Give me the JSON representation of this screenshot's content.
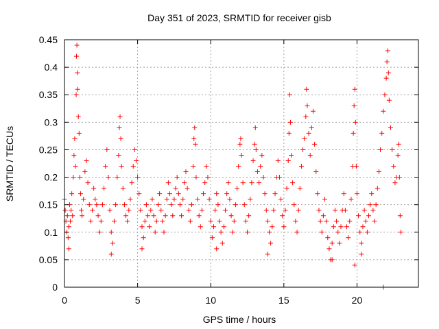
{
  "chart_data": {
    "type": "scatter",
    "title": "Day 351 of 2023, SRMTID for receiver gisb",
    "xlabel": "GPS time / hours",
    "ylabel": "SRMTID / TECUs",
    "xlim": [
      0,
      24.2
    ],
    "ylim": [
      0,
      0.45
    ],
    "xticks": [
      0,
      5,
      10,
      15,
      20
    ],
    "yticks": [
      0,
      0.05,
      0.1,
      0.15,
      0.2,
      0.25,
      0.3,
      0.35,
      0.4,
      0.45
    ],
    "xtick_labels": [
      "0",
      "5",
      "10",
      "15",
      "20"
    ],
    "ytick_labels": [
      "0",
      "0.05",
      "0.1",
      "0.15",
      "0.2",
      "0.25",
      "0.3",
      "0.35",
      "0.4",
      "0.45"
    ],
    "grid": true,
    "marker": "+",
    "series": [
      {
        "name": "SRMTID",
        "color": "#ff0000",
        "points": [
          [
            0.0,
            0.16
          ],
          [
            0.05,
            0.14
          ],
          [
            0.1,
            0.12
          ],
          [
            0.15,
            0.1
          ],
          [
            0.2,
            0.13
          ],
          [
            0.25,
            0.09
          ],
          [
            0.3,
            0.11
          ],
          [
            0.35,
            0.15
          ],
          [
            0.4,
            0.12
          ],
          [
            0.45,
            0.14
          ],
          [
            0.5,
            0.17
          ],
          [
            0.55,
            0.13
          ],
          [
            0.6,
            0.2
          ],
          [
            0.65,
            0.24
          ],
          [
            0.7,
            0.27
          ],
          [
            0.75,
            0.22
          ],
          [
            0.8,
            0.35
          ],
          [
            0.82,
            0.42
          ],
          [
            0.85,
            0.44
          ],
          [
            0.88,
            0.39
          ],
          [
            0.9,
            0.36
          ],
          [
            0.95,
            0.31
          ],
          [
            1.0,
            0.28
          ],
          [
            1.05,
            0.2
          ],
          [
            1.1,
            0.17
          ],
          [
            1.15,
            0.14
          ],
          [
            1.2,
            0.13
          ],
          [
            1.3,
            0.16
          ],
          [
            1.4,
            0.21
          ],
          [
            1.5,
            0.23
          ],
          [
            1.6,
            0.19
          ],
          [
            1.7,
            0.15
          ],
          [
            1.8,
            0.12
          ],
          [
            1.9,
            0.14
          ],
          [
            2.0,
            0.18
          ],
          [
            2.1,
            0.16
          ],
          [
            2.2,
            0.15
          ],
          [
            2.3,
            0.13
          ],
          [
            2.4,
            0.1
          ],
          [
            2.5,
            0.12
          ],
          [
            2.6,
            0.15
          ],
          [
            2.7,
            0.18
          ],
          [
            2.8,
            0.22
          ],
          [
            2.9,
            0.25
          ],
          [
            3.0,
            0.2
          ],
          [
            3.1,
            0.14
          ],
          [
            3.2,
            0.1
          ],
          [
            3.3,
            0.08
          ],
          [
            3.4,
            0.12
          ],
          [
            3.5,
            0.15
          ],
          [
            3.6,
            0.2
          ],
          [
            3.7,
            0.24
          ],
          [
            3.75,
            0.29
          ],
          [
            3.8,
            0.31
          ],
          [
            3.85,
            0.27
          ],
          [
            3.9,
            0.22
          ],
          [
            4.0,
            0.18
          ],
          [
            4.1,
            0.15
          ],
          [
            4.2,
            0.13
          ],
          [
            4.3,
            0.12
          ],
          [
            4.4,
            0.14
          ],
          [
            4.5,
            0.16
          ],
          [
            4.6,
            0.19
          ],
          [
            4.7,
            0.22
          ],
          [
            4.8,
            0.25
          ],
          [
            4.9,
            0.23
          ],
          [
            5.0,
            0.2
          ],
          [
            5.1,
            0.17
          ],
          [
            5.2,
            0.14
          ],
          [
            5.3,
            0.11
          ],
          [
            5.4,
            0.09
          ],
          [
            5.5,
            0.12
          ],
          [
            5.6,
            0.15
          ],
          [
            5.7,
            0.13
          ],
          [
            5.8,
            0.11
          ],
          [
            5.9,
            0.14
          ],
          [
            6.0,
            0.16
          ],
          [
            6.1,
            0.13
          ],
          [
            6.2,
            0.1
          ],
          [
            6.3,
            0.12
          ],
          [
            6.4,
            0.15
          ],
          [
            6.5,
            0.17
          ],
          [
            6.6,
            0.14
          ],
          [
            6.7,
            0.12
          ],
          [
            6.8,
            0.1
          ],
          [
            6.9,
            0.13
          ],
          [
            7.0,
            0.16
          ],
          [
            7.1,
            0.19
          ],
          [
            7.2,
            0.17
          ],
          [
            7.3,
            0.15
          ],
          [
            7.4,
            0.13
          ],
          [
            7.5,
            0.16
          ],
          [
            7.6,
            0.18
          ],
          [
            7.7,
            0.2
          ],
          [
            7.8,
            0.17
          ],
          [
            7.9,
            0.15
          ],
          [
            8.0,
            0.13
          ],
          [
            8.1,
            0.16
          ],
          [
            8.2,
            0.19
          ],
          [
            8.3,
            0.21
          ],
          [
            8.4,
            0.18
          ],
          [
            8.5,
            0.14
          ],
          [
            8.6,
            0.12
          ],
          [
            8.7,
            0.15
          ],
          [
            8.8,
            0.22
          ],
          [
            8.85,
            0.27
          ],
          [
            8.9,
            0.29
          ],
          [
            8.95,
            0.26
          ],
          [
            9.0,
            0.2
          ],
          [
            9.1,
            0.16
          ],
          [
            9.2,
            0.13
          ],
          [
            9.3,
            0.11
          ],
          [
            9.4,
            0.14
          ],
          [
            9.5,
            0.17
          ],
          [
            9.6,
            0.19
          ],
          [
            9.7,
            0.22
          ],
          [
            9.8,
            0.2
          ],
          [
            9.9,
            0.16
          ],
          [
            10.0,
            0.12
          ],
          [
            10.1,
            0.09
          ],
          [
            10.2,
            0.11
          ],
          [
            10.3,
            0.14
          ],
          [
            10.4,
            0.17
          ],
          [
            10.5,
            0.15
          ],
          [
            10.6,
            0.12
          ],
          [
            10.7,
            0.1
          ],
          [
            10.8,
            0.08
          ],
          [
            10.9,
            0.11
          ],
          [
            11.0,
            0.14
          ],
          [
            11.1,
            0.17
          ],
          [
            11.2,
            0.19
          ],
          [
            11.3,
            0.16
          ],
          [
            11.4,
            0.13
          ],
          [
            11.5,
            0.1
          ],
          [
            11.6,
            0.12
          ],
          [
            11.7,
            0.15
          ],
          [
            11.8,
            0.18
          ],
          [
            11.9,
            0.22
          ],
          [
            12.0,
            0.26
          ],
          [
            12.05,
            0.27
          ],
          [
            12.1,
            0.24
          ],
          [
            12.2,
            0.19
          ],
          [
            12.3,
            0.15
          ],
          [
            12.4,
            0.12
          ],
          [
            12.5,
            0.1
          ],
          [
            12.6,
            0.13
          ],
          [
            12.7,
            0.16
          ],
          [
            12.8,
            0.19
          ],
          [
            12.9,
            0.23
          ],
          [
            13.0,
            0.26
          ],
          [
            13.05,
            0.29
          ],
          [
            13.1,
            0.25
          ],
          [
            13.2,
            0.21
          ],
          [
            13.3,
            0.19
          ],
          [
            13.4,
            0.22
          ],
          [
            13.5,
            0.24
          ],
          [
            13.6,
            0.2
          ],
          [
            13.7,
            0.17
          ],
          [
            13.8,
            0.14
          ],
          [
            13.9,
            0.12
          ],
          [
            14.0,
            0.1
          ],
          [
            14.1,
            0.08
          ],
          [
            14.2,
            0.11
          ],
          [
            14.3,
            0.14
          ],
          [
            14.4,
            0.17
          ],
          [
            14.5,
            0.2
          ],
          [
            14.6,
            0.23
          ],
          [
            14.7,
            0.2
          ],
          [
            14.8,
            0.16
          ],
          [
            14.9,
            0.13
          ],
          [
            15.0,
            0.11
          ],
          [
            15.1,
            0.14
          ],
          [
            15.2,
            0.18
          ],
          [
            15.3,
            0.23
          ],
          [
            15.35,
            0.28
          ],
          [
            15.4,
            0.35
          ],
          [
            15.45,
            0.3
          ],
          [
            15.5,
            0.24
          ],
          [
            15.6,
            0.19
          ],
          [
            15.7,
            0.15
          ],
          [
            15.8,
            0.12
          ],
          [
            15.9,
            0.1
          ],
          [
            16.0,
            0.14
          ],
          [
            16.1,
            0.18
          ],
          [
            16.2,
            0.22
          ],
          [
            16.3,
            0.25
          ],
          [
            16.4,
            0.27
          ],
          [
            16.5,
            0.31
          ],
          [
            16.55,
            0.36
          ],
          [
            16.6,
            0.33
          ],
          [
            16.7,
            0.28
          ],
          [
            16.8,
            0.24
          ],
          [
            16.9,
            0.29
          ],
          [
            17.0,
            0.32
          ],
          [
            17.1,
            0.26
          ],
          [
            17.2,
            0.21
          ],
          [
            17.3,
            0.17
          ],
          [
            17.4,
            0.14
          ],
          [
            17.5,
            0.12
          ],
          [
            17.6,
            0.1
          ],
          [
            17.7,
            0.13
          ],
          [
            17.8,
            0.16
          ],
          [
            17.9,
            0.12
          ],
          [
            18.0,
            0.09
          ],
          [
            18.1,
            0.07
          ],
          [
            18.2,
            0.05
          ],
          [
            18.3,
            0.08
          ],
          [
            18.4,
            0.11
          ],
          [
            18.5,
            0.14
          ],
          [
            18.6,
            0.12
          ],
          [
            18.7,
            0.1
          ],
          [
            18.8,
            0.08
          ],
          [
            18.9,
            0.11
          ],
          [
            19.0,
            0.14
          ],
          [
            19.1,
            0.17
          ],
          [
            19.2,
            0.14
          ],
          [
            19.3,
            0.11
          ],
          [
            19.4,
            0.09
          ],
          [
            19.5,
            0.12
          ],
          [
            19.6,
            0.16
          ],
          [
            19.7,
            0.22
          ],
          [
            19.75,
            0.28
          ],
          [
            19.8,
            0.33
          ],
          [
            19.85,
            0.36
          ],
          [
            19.9,
            0.3
          ],
          [
            19.95,
            0.22
          ],
          [
            20.0,
            0.17
          ],
          [
            20.1,
            0.13
          ],
          [
            20.2,
            0.1
          ],
          [
            20.3,
            0.08
          ],
          [
            20.4,
            0.11
          ],
          [
            20.5,
            0.14
          ],
          [
            20.6,
            0.12
          ],
          [
            20.7,
            0.1
          ],
          [
            20.8,
            0.13
          ],
          [
            20.9,
            0.15
          ],
          [
            21.0,
            0.17
          ],
          [
            21.1,
            0.14
          ],
          [
            21.2,
            0.12
          ],
          [
            21.3,
            0.15
          ],
          [
            21.4,
            0.18
          ],
          [
            21.5,
            0.21
          ],
          [
            21.6,
            0.25
          ],
          [
            21.7,
            0.28
          ],
          [
            21.8,
            0.32
          ],
          [
            21.9,
            0.35
          ],
          [
            22.0,
            0.38
          ],
          [
            22.05,
            0.41
          ],
          [
            22.1,
            0.43
          ],
          [
            22.15,
            0.39
          ],
          [
            22.2,
            0.34
          ],
          [
            22.3,
            0.29
          ],
          [
            22.4,
            0.25
          ],
          [
            22.5,
            0.22
          ],
          [
            22.6,
            0.19
          ],
          [
            22.7,
            0.2
          ],
          [
            22.8,
            0.24
          ],
          [
            22.85,
            0.26
          ],
          [
            22.9,
            0.2
          ],
          [
            22.95,
            0.13
          ],
          [
            23.0,
            0.1
          ],
          [
            19.85,
            0.04
          ],
          [
            21.8,
            0.0
          ],
          [
            0.3,
            0.07
          ],
          [
            3.2,
            0.06
          ],
          [
            5.3,
            0.07
          ],
          [
            10.4,
            0.07
          ],
          [
            13.9,
            0.06
          ],
          [
            18.3,
            0.05
          ],
          [
            20.3,
            0.06
          ]
        ]
      }
    ]
  }
}
